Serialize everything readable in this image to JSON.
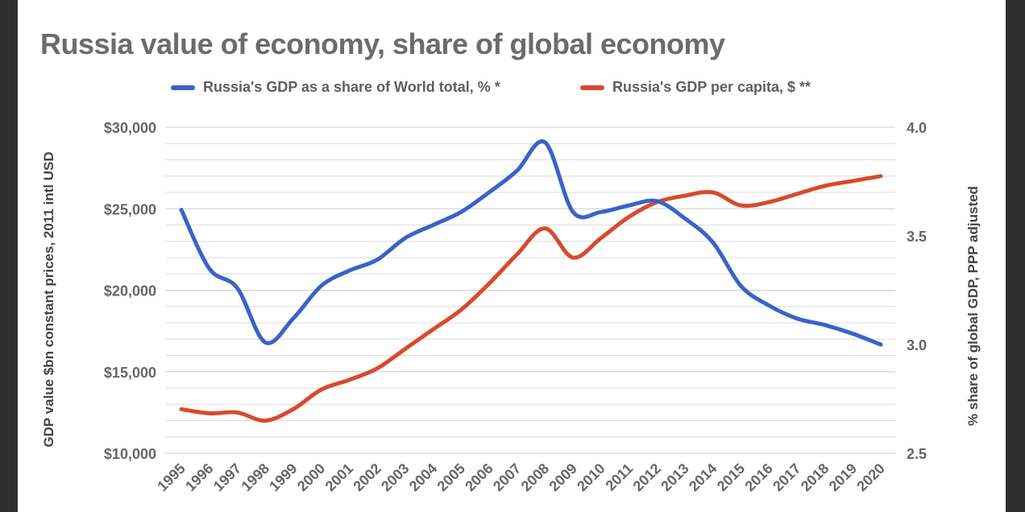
{
  "colors": {
    "gdp_share": "#3a63c8",
    "gdp_per_capita": "#d84a2c"
  },
  "chart_data": {
    "type": "line",
    "title": "Russia value of economy, share of global economy",
    "x": [
      "1995",
      "1996",
      "1997",
      "1998",
      "1999",
      "2000",
      "2001",
      "2002",
      "2003",
      "2004",
      "2005",
      "2006",
      "2007",
      "2008",
      "2009",
      "2010",
      "2011",
      "2012",
      "2013",
      "2014",
      "2015",
      "2016",
      "2017",
      "2018",
      "2019",
      "2020"
    ],
    "series": [
      {
        "name": "Russia's GDP as a share of World total, % *",
        "axis": "right",
        "color": "#3a63c8",
        "values": [
          3.62,
          3.35,
          3.26,
          3.01,
          3.12,
          3.27,
          3.34,
          3.39,
          3.49,
          3.55,
          3.61,
          3.7,
          3.8,
          3.93,
          3.61,
          3.61,
          3.64,
          3.66,
          3.58,
          3.47,
          3.27,
          3.18,
          3.12,
          3.09,
          3.05,
          3.0
        ]
      },
      {
        "name": "Russia's GDP per capita, $ **",
        "axis": "left",
        "color": "#d84a2c",
        "values": [
          12700,
          12450,
          12500,
          12000,
          12700,
          13900,
          14500,
          15200,
          16400,
          17600,
          18800,
          20400,
          22200,
          23800,
          22000,
          23200,
          24500,
          25400,
          25800,
          26000,
          25200,
          25400,
          25900,
          26400,
          26700,
          27000
        ]
      }
    ],
    "ylabel": "GDP value $bn constant prices, 2011 intl USD",
    "ylim": [
      10000,
      30000
    ],
    "yticks": [
      "$30,000",
      "$25,000",
      "$20,000",
      "$15,000",
      "$10,000"
    ],
    "ytick_values": [
      30000,
      25000,
      20000,
      15000,
      10000
    ],
    "y2label": "% share of global GDP, PPP adjusted",
    "y2lim": [
      2.5,
      4.0
    ],
    "y2ticks": [
      "4.0",
      "3.5",
      "3.0",
      "2.5"
    ],
    "y2tick_values": [
      4.0,
      3.5,
      3.0,
      2.5
    ],
    "grid": true,
    "legend_position": "top"
  }
}
